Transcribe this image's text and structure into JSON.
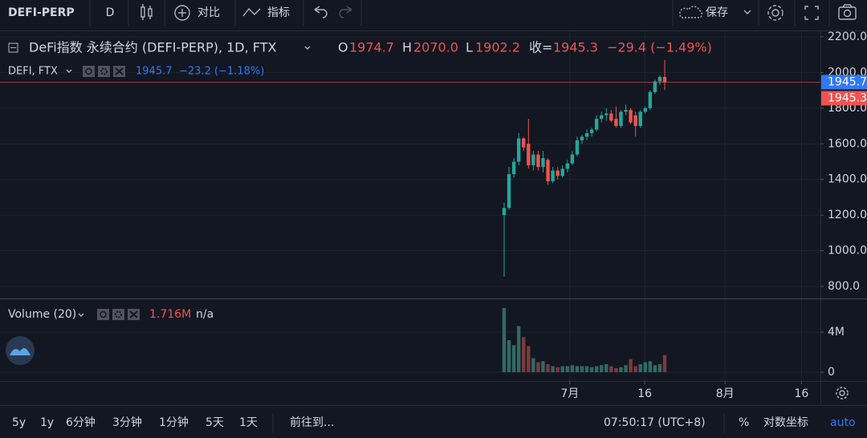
{
  "toolbar": {
    "symbol": "DEFI-PERP",
    "interval": "D",
    "compare": "对比",
    "indicators": "指标",
    "save": "保存"
  },
  "chart_data": [
    {
      "type": "candlestick",
      "title": "DeFi指数 永续合约 (DEFI-PERP), 1D, FTX",
      "legend": [
        {
          "label": "O",
          "value": "1974.7"
        },
        {
          "label": "H",
          "value": "2070.0"
        },
        {
          "label": "L",
          "value": "1902.2"
        },
        {
          "label": "收=",
          "value": "1945.3"
        }
      ],
      "change": "−29.4 (−1.49%)",
      "compare_series": {
        "name": "DEFI, FTX",
        "values_text": "1945.7",
        "change": "−23.2 (−1.18%)",
        "last": 1945.7,
        "color": "#3179f5"
      },
      "last_close": 1945.3,
      "up_color": "#26a69a",
      "down_color": "#ef5350",
      "x": [
        0,
        1,
        2,
        3,
        4,
        5,
        6,
        7,
        8,
        9,
        10,
        11,
        12,
        13,
        14,
        15,
        16,
        17,
        18,
        19,
        20,
        21,
        22,
        23,
        24,
        25,
        26,
        27,
        28,
        29,
        30,
        31,
        32,
        33
      ],
      "open": [
        1200,
        1240,
        1430,
        1500,
        1630,
        1600,
        1480,
        1540,
        1470,
        1510,
        1390,
        1450,
        1420,
        1460,
        1490,
        1540,
        1620,
        1640,
        1660,
        1680,
        1740,
        1760,
        1770,
        1740,
        1700,
        1780,
        1790,
        1760,
        1700,
        1780,
        1800,
        1890,
        1950,
        1974.7
      ],
      "high": [
        1270,
        1470,
        1520,
        1660,
        1640,
        1740,
        1560,
        1560,
        1560,
        1520,
        1470,
        1470,
        1480,
        1510,
        1560,
        1640,
        1650,
        1680,
        1690,
        1760,
        1780,
        1800,
        1790,
        1810,
        1790,
        1820,
        1800,
        1780,
        1790,
        1810,
        1900,
        1960,
        1985,
        2070
      ],
      "low": [
        855,
        1230,
        1410,
        1480,
        1560,
        1460,
        1450,
        1450,
        1440,
        1370,
        1380,
        1400,
        1410,
        1440,
        1480,
        1530,
        1600,
        1620,
        1640,
        1670,
        1720,
        1730,
        1720,
        1690,
        1690,
        1760,
        1710,
        1640,
        1690,
        1770,
        1790,
        1880,
        1930,
        1902.2
      ],
      "close": [
        1240,
        1430,
        1500,
        1630,
        1580,
        1480,
        1540,
        1470,
        1520,
        1390,
        1450,
        1420,
        1460,
        1490,
        1540,
        1620,
        1640,
        1660,
        1680,
        1740,
        1760,
        1770,
        1730,
        1700,
        1780,
        1790,
        1720,
        1700,
        1780,
        1800,
        1890,
        1950,
        1974.7,
        1945.3
      ],
      "xlim": [
        -103.6,
        65.0
      ],
      "xticks": [
        {
          "value": 13.5,
          "label": "7月"
        },
        {
          "value": 28.9,
          "label": "16"
        },
        {
          "value": 45.4,
          "label": "8月"
        },
        {
          "value": 61.1,
          "label": "16"
        }
      ],
      "ylim": [
        733,
        2231
      ],
      "yticks": [
        {
          "value": 800,
          "label": "800.0"
        },
        {
          "value": 1000,
          "label": "1000.0"
        },
        {
          "value": 1200,
          "label": "1200.0"
        },
        {
          "value": 1400,
          "label": "1400.0"
        },
        {
          "value": 1600,
          "label": "1600.0"
        },
        {
          "value": 1800,
          "label": "1800.0"
        },
        {
          "value": 2000,
          "label": "2000.0"
        },
        {
          "value": 2200,
          "label": "2200.0"
        }
      ],
      "grid": true
    },
    {
      "type": "bar",
      "title": "Volume (20)",
      "last_label": "1.716M",
      "ma_label": "n/a",
      "up_color": "#2f6b62",
      "down_color": "#7d3a3c",
      "values": [
        6400000,
        3200000,
        2700000,
        4600000,
        3500000,
        2600000,
        1400000,
        1000000,
        1100000,
        800000,
        600000,
        500000,
        600000,
        600000,
        700000,
        600000,
        600000,
        600000,
        500000,
        600000,
        700000,
        800000,
        600000,
        400000,
        500000,
        700000,
        1300000,
        600000,
        800000,
        1000000,
        1100000,
        700000,
        800000,
        1716000
      ],
      "ylim": [
        -880000,
        7280000
      ],
      "yticks": [
        0,
        {
          "value": 4000000,
          "label": "4M"
        }
      ],
      "grid": true
    }
  ],
  "bottom_bar": {
    "ranges": [
      "5y",
      "1y",
      "6分钟",
      "3分钟",
      "1分钟",
      "5天",
      "1天"
    ],
    "goto": "前往到...",
    "time": "07:50:17 (UTC+8)",
    "percent": "%",
    "log": "对数坐标",
    "auto": "auto"
  }
}
